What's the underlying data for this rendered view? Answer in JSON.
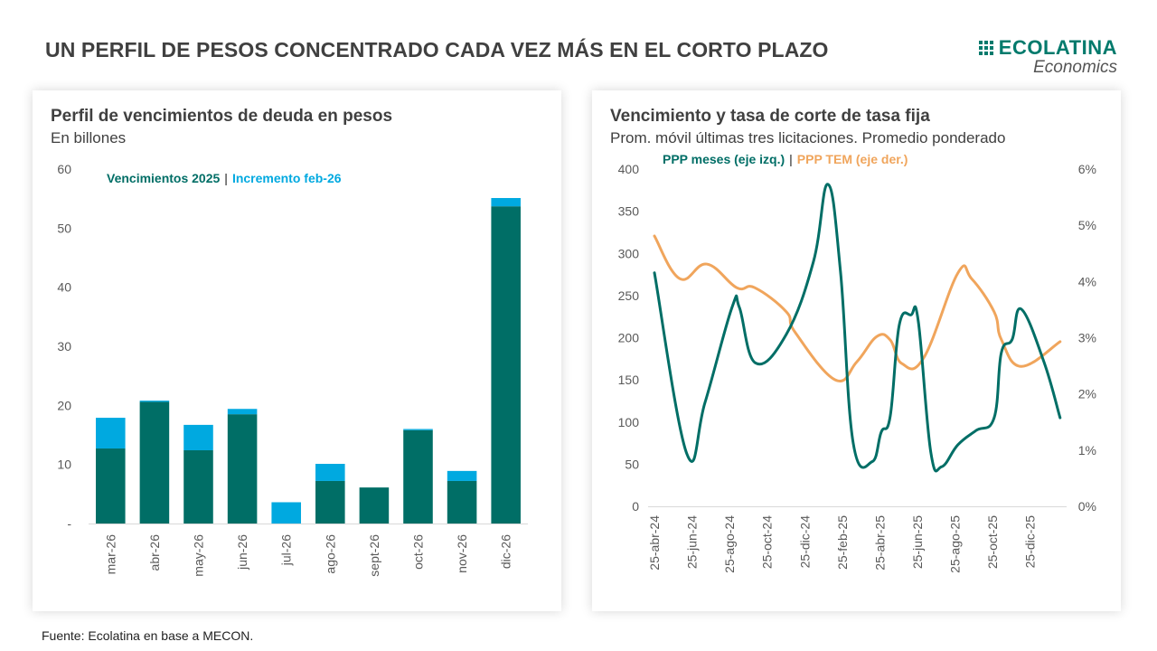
{
  "header": {
    "title": "UN PERFIL DE PESOS CONCENTRADO CADA VEZ MÁS EN EL CORTO PLAZO",
    "logo_name": "ECOLATINA",
    "logo_sub": "Economics"
  },
  "colors": {
    "teal": "#006e66",
    "light_blue": "#00a9e0",
    "orange": "#f0a55c",
    "text": "#404040"
  },
  "footer": {
    "source": "Fuente: Ecolatina en base a MECON."
  },
  "chart_data": [
    {
      "type": "bar",
      "stacked": true,
      "title": "Perfil de vencimientos de deuda en pesos",
      "subtitle": "En billones",
      "legend_position": "top",
      "legend_separator": "|",
      "categories": [
        "mar-26",
        "abr-26",
        "may-26",
        "jun-26",
        "jul-26",
        "ago-26",
        "sept-26",
        "oct-26",
        "nov-26",
        "dic-26"
      ],
      "series": [
        {
          "name": "Vencimientos 2025",
          "color": "#006e66",
          "values": [
            12.7,
            20.6,
            12.4,
            18.5,
            0,
            7.2,
            6.1,
            15.8,
            7.2,
            53.7
          ]
        },
        {
          "name": "Incremento feb-26",
          "color": "#00a9e0",
          "values": [
            5.2,
            0.2,
            4.3,
            0.9,
            3.6,
            2.9,
            0,
            0.2,
            1.7,
            1.4
          ]
        }
      ],
      "ylim": [
        0,
        60
      ],
      "yticks": [
        0,
        10,
        20,
        30,
        40,
        50,
        60
      ],
      "ytick_labels": [
        "-",
        "10",
        "20",
        "30",
        "40",
        "50",
        "60"
      ],
      "xlabel": "",
      "ylabel": "",
      "grid": false
    },
    {
      "type": "line",
      "title": "Vencimiento y tasa de corte de tasa fija",
      "subtitle": "Prom. móvil últimas tres licitaciones. Promedio ponderado",
      "legend_position": "top",
      "legend_separator": "|",
      "x_unit": "months since 25-abr-24",
      "xlim": [
        0,
        21.6
      ],
      "xticks": [
        0,
        2,
        4,
        6,
        8,
        10,
        12,
        14,
        16,
        18,
        20
      ],
      "xtick_labels": [
        "25-abr-24",
        "25-jun-24",
        "25-ago-24",
        "25-oct-24",
        "25-dic-24",
        "25-feb-25",
        "25-abr-25",
        "25-jun-25",
        "25-ago-25",
        "25-oct-25",
        "25-dic-25"
      ],
      "y_left": {
        "label": "PPP meses",
        "lim": [
          0,
          400
        ],
        "ticks": [
          0,
          50,
          100,
          150,
          200,
          250,
          300,
          350,
          400
        ]
      },
      "y_right": {
        "label": "PPP TEM",
        "lim": [
          0,
          6
        ],
        "ticks": [
          0,
          1,
          2,
          3,
          4,
          5,
          6
        ],
        "tick_labels": [
          "0%",
          "1%",
          "2%",
          "3%",
          "4%",
          "5%",
          "6%"
        ]
      },
      "series": [
        {
          "name": "PPP meses (eje izq.)",
          "axis": "left",
          "color": "#006e66",
          "x": [
            0,
            1.73,
            2.69,
            4.13,
            4.52,
            5.38,
            7.02,
            8.46,
            9.23,
            9.9,
            10.58,
            11.59,
            12.07,
            12.55,
            13.03,
            13.65,
            14.04,
            14.71,
            15.29,
            16.15,
            17.12,
            18.08,
            18.46,
            19.04,
            19.52,
            20.72,
            21.59
          ],
          "values": [
            277,
            62,
            123,
            236,
            236,
            170,
            204,
            290,
            382,
            279,
            75,
            53,
            88,
            107,
            215,
            227,
            220,
            64,
            47,
            73,
            90,
            105,
            182,
            198,
            234,
            172,
            105
          ]
        },
        {
          "name": "PPP TEM (eje der.)",
          "axis": "right",
          "color": "#f0a55c",
          "x": [
            0,
            1.35,
            2.79,
            4.38,
            5.34,
            7.02,
            7.5,
            9.62,
            10.77,
            11.83,
            12.55,
            13.17,
            14.33,
            16.15,
            16.88,
            18.08,
            18.46,
            19.52,
            21.59
          ],
          "values": [
            4.81,
            4.05,
            4.31,
            3.89,
            3.89,
            3.46,
            3.09,
            2.25,
            2.57,
            3.02,
            2.96,
            2.54,
            2.64,
            4.15,
            4.05,
            3.46,
            2.97,
            2.49,
            2.93
          ]
        }
      ],
      "grid": false
    }
  ]
}
